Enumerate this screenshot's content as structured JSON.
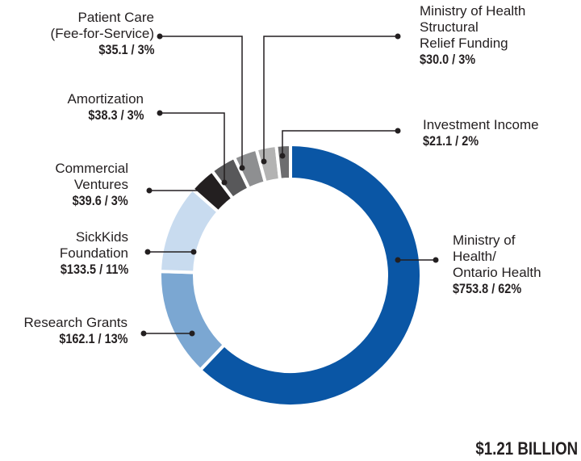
{
  "chart_data": {
    "type": "pie",
    "donut": true,
    "total_label": "$1.21 BILLION",
    "slices": [
      {
        "name": "Ministry of Health/ Ontario Health",
        "lines": [
          "Ministry of",
          "Health/",
          "Ontario Health"
        ],
        "value": 753.8,
        "value_label": "$753.8 / 62%",
        "color": "#0a56a5"
      },
      {
        "name": "Research Grants",
        "lines": [
          "Research Grants"
        ],
        "value": 162.1,
        "value_label": "$162.1 / 13%",
        "color": "#7ba7d2"
      },
      {
        "name": "SickKids Foundation",
        "lines": [
          "SickKids",
          "Foundation"
        ],
        "value": 133.5,
        "value_label": "$133.5 / 11%",
        "color": "#c8dbef"
      },
      {
        "name": "Commercial Ventures",
        "lines": [
          "Commercial",
          "Ventures"
        ],
        "value": 39.6,
        "value_label": "$39.6 / 3%",
        "color": "#231f20"
      },
      {
        "name": "Amortization",
        "lines": [
          "Amortization"
        ],
        "value": 38.3,
        "value_label": "$38.3 / 3%",
        "color": "#58585a"
      },
      {
        "name": "Patient Care (Fee-for-Service)",
        "lines": [
          "Patient Care",
          "(Fee-for-Service)"
        ],
        "value": 35.1,
        "value_label": "$35.1 / 3%",
        "color": "#8e8f91"
      },
      {
        "name": "Ministry of Health Structural Relief Funding",
        "lines": [
          "Ministry of Health",
          "Structural",
          "Relief Funding"
        ],
        "value": 30.0,
        "value_label": "$30.0 / 3%",
        "color": "#b3b3b3"
      },
      {
        "name": "Investment Income",
        "lines": [
          "Investment Income"
        ],
        "value": 21.1,
        "value_label": "$21.1 / 2%",
        "color": "#6d6d6f"
      }
    ]
  }
}
